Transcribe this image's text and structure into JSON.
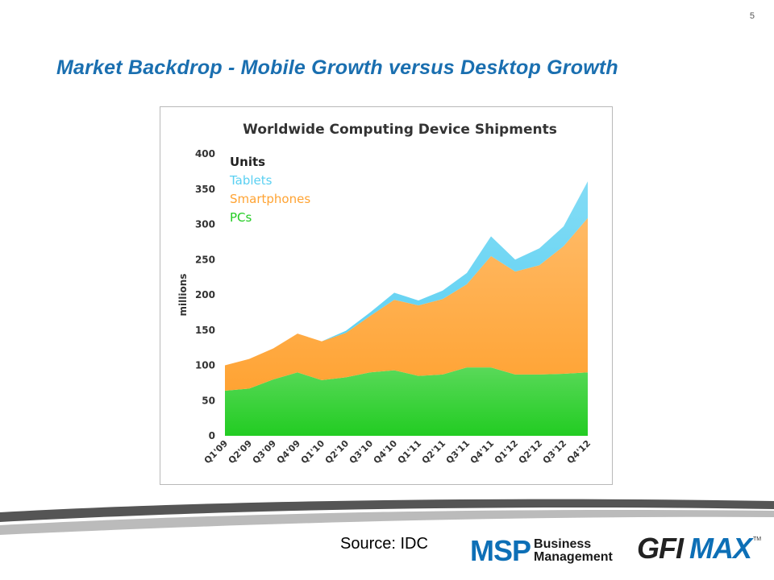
{
  "page_number": "5",
  "slide_title": "Market Backdrop - Mobile Growth versus Desktop Growth",
  "source_text": "Source: IDC",
  "logos": {
    "msp": {
      "big": "MSP",
      "line1": "Business",
      "line2": "Management"
    },
    "gfi": {
      "part1": "GFI",
      "part2": "MAX",
      "tm": "TM"
    }
  },
  "chart_data": {
    "type": "area",
    "stacked": true,
    "title": "Worldwide Computing Device Shipments",
    "ylabel": "millions",
    "xlabel": "",
    "ylim": [
      0,
      400
    ],
    "yticks": [
      0,
      50,
      100,
      150,
      200,
      250,
      300,
      350,
      400
    ],
    "grid": false,
    "legend_title": "Units",
    "legend_position": "top-left",
    "categories": [
      "Q1'09",
      "Q2'09",
      "Q3'09",
      "Q4'09",
      "Q1'10",
      "Q2'10",
      "Q3'10",
      "Q4'10",
      "Q1'11",
      "Q2'11",
      "Q3'11",
      "Q4'11",
      "Q1'12",
      "Q2'12",
      "Q3'12",
      "Q4'12"
    ],
    "series": [
      {
        "name": "PCs",
        "color": "#22cc22",
        "values": [
          64,
          67,
          80,
          90,
          79,
          83,
          90,
          93,
          85,
          87,
          97,
          97,
          87,
          87,
          88,
          90
        ]
      },
      {
        "name": "Smartphones",
        "color": "#ffa333",
        "values": [
          36,
          42,
          44,
          55,
          55,
          63,
          80,
          100,
          100,
          107,
          118,
          158,
          146,
          155,
          181,
          219
        ]
      },
      {
        "name": "Tablets",
        "color": "#5ad0f2",
        "values": [
          0,
          0,
          0,
          0,
          0,
          3,
          5,
          10,
          7,
          12,
          16,
          28,
          17,
          24,
          28,
          52
        ]
      }
    ]
  }
}
